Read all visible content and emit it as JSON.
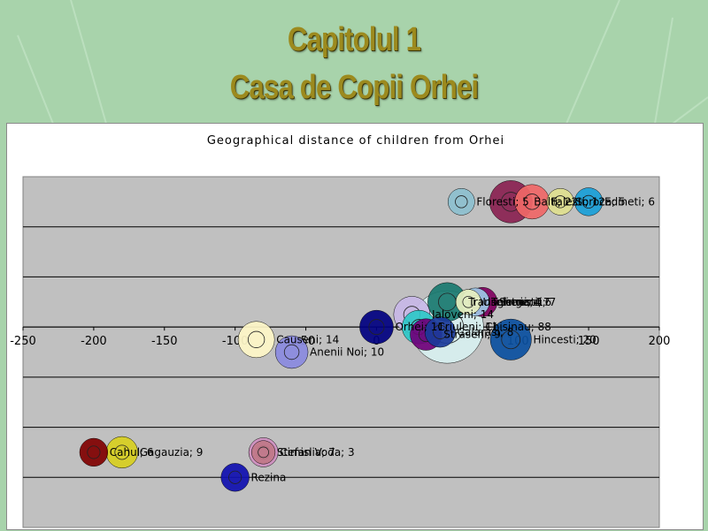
{
  "slide": {
    "title_line1": "Capitolul 1",
    "title_line2": "Casa de Copii Orhei",
    "background_color": "#a8d3ab",
    "title_color": "#9c8a1e"
  },
  "chart_data": {
    "type": "bubble",
    "title": "Geographical distance of children from Orhei",
    "xlabel": "",
    "ylabel": "",
    "xlim": [
      -250,
      200
    ],
    "ylim": [
      -8,
      6
    ],
    "x_ticks": [
      -250,
      -200,
      -150,
      -100,
      -50,
      0,
      50,
      100,
      150,
      200
    ],
    "y_ticks": [
      -8,
      -6,
      -4,
      -2,
      0,
      2,
      4,
      6
    ],
    "grid": true,
    "plot_background": "#c0c0c0",
    "points": [
      {
        "label": "Chisinau; 88",
        "x": 50,
        "y": 0,
        "size": 88,
        "color": "#d8f0f0"
      },
      {
        "label": "Orhei; 11",
        "x": 0,
        "y": 0,
        "size": 11,
        "color": "#000080"
      },
      {
        "label": "Balti; 22",
        "x": 95,
        "y": 5,
        "size": 22,
        "color": "#8a2252"
      },
      {
        "label": "Hincesti; 20",
        "x": 95,
        "y": -0.5,
        "size": 20,
        "color": "#0a50a0"
      },
      {
        "label": "Transnistria; 17",
        "x": 50,
        "y": 1,
        "size": 17,
        "color": "#1a7a70"
      },
      {
        "label": "Causeni; 14",
        "x": -85,
        "y": -0.5,
        "size": 14,
        "color": "#fff8c8"
      },
      {
        "label": "Ialoveni; 14",
        "x": 25,
        "y": 0.5,
        "size": 14,
        "color": "#c8b8e8"
      },
      {
        "label": "Falesti; 12",
        "x": 110,
        "y": 5,
        "size": 12,
        "color": "#f06868"
      },
      {
        "label": "Criuleni; 11",
        "x": 30,
        "y": 0,
        "size": 11,
        "color": "#2ec8c8"
      },
      {
        "label": "Anenii Noi; 10",
        "x": -60,
        "y": -1,
        "size": 10,
        "color": "#8a8ae0"
      },
      {
        "label": "Straseni; 9",
        "x": 35,
        "y": -0.3,
        "size": 9,
        "color": "#70007a"
      },
      {
        "label": "Gagauzia; 9",
        "x": -180,
        "y": -5,
        "size": 9,
        "color": "#d8d020"
      },
      {
        "label": "Calarasi; 8",
        "x": 45,
        "y": -0.2,
        "size": 8,
        "color": "#1a3a9a"
      },
      {
        "label": "Cimislia; 7",
        "x": -80,
        "y": -5,
        "size": 7,
        "color": "#d090c0"
      },
      {
        "label": "Singerei; 7",
        "x": 75,
        "y": 1,
        "size": 7,
        "color": "#800060"
      },
      {
        "label": "Cahul; 6",
        "x": -200,
        "y": -5,
        "size": 6,
        "color": "#800000"
      },
      {
        "label": "Edineti; 6",
        "x": 150,
        "y": 5,
        "size": 6,
        "color": "#1aa0d8"
      },
      {
        "label": "Telenesti; 6",
        "x": 70,
        "y": 1,
        "size": 6,
        "color": "#9ec8e8"
      },
      {
        "label": "Floresti; 5",
        "x": 60,
        "y": 5,
        "size": 5,
        "color": "#8ec0d0"
      },
      {
        "label": "Soroca; 5",
        "x": 130,
        "y": 5,
        "size": 5,
        "color": "#e0e090"
      },
      {
        "label": "Ungheni; 4",
        "x": 65,
        "y": 1,
        "size": 4,
        "color": "#e8f0c0"
      },
      {
        "label": "Stefan Voda; 3",
        "x": -80,
        "y": -5,
        "size": 3,
        "color": "#c07888"
      },
      {
        "label": "Rezina",
        "x": -100,
        "y": -6,
        "size": 6,
        "color": "#1010b0"
      }
    ]
  }
}
